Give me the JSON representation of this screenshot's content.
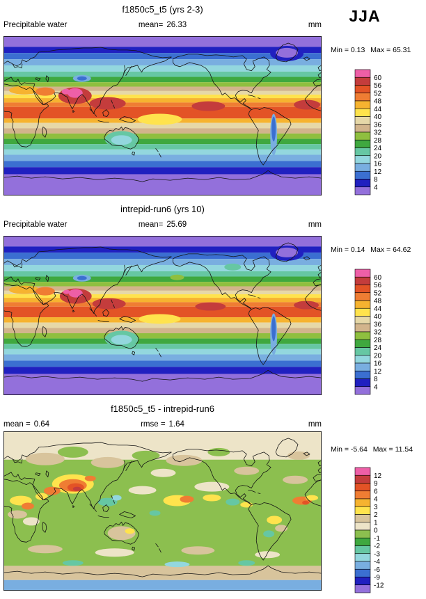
{
  "header": {
    "season": "JJA"
  },
  "chart_data": [
    {
      "type": "filled_contour_map",
      "title": "f1850c5_t5 (yrs 2-3)",
      "stats_left_label": "Precipitable water",
      "stats_left_value": "",
      "stats_center_label": "mean=",
      "stats_center_value": "26.33",
      "units": "mm",
      "min_label": "Min =",
      "min_value": "0.13",
      "max_label": "Max =",
      "max_value": "65.31",
      "colorbar_levels": [
        60,
        56,
        52,
        48,
        44,
        40,
        36,
        32,
        28,
        24,
        20,
        16,
        12,
        8,
        4
      ],
      "colorbar_colors": [
        "#EE5FA7",
        "#C43C3C",
        "#E35326",
        "#EF7D33",
        "#F6B330",
        "#FFE34D",
        "#E6D8A8",
        "#D2B48C",
        "#8FBF3F",
        "#3FA83F",
        "#66C7A3",
        "#93D7DE",
        "#79AEE0",
        "#3B6FD1",
        "#2020C0",
        "#9370DB"
      ],
      "zonal_bands": [
        [
          90,
          78,
          2
        ],
        [
          78,
          71,
          6
        ],
        [
          71,
          64,
          10
        ],
        [
          64,
          57,
          14
        ],
        [
          57,
          50,
          18
        ],
        [
          50,
          44,
          22
        ],
        [
          44,
          38,
          26
        ],
        [
          38,
          33,
          30
        ],
        [
          33,
          28,
          34
        ],
        [
          28,
          24,
          38
        ],
        [
          24,
          20,
          42
        ],
        [
          20,
          15,
          46
        ],
        [
          15,
          10,
          50
        ],
        [
          10,
          -3,
          54
        ],
        [
          -3,
          -8,
          46
        ],
        [
          -8,
          -14,
          38
        ],
        [
          -14,
          -20,
          34
        ],
        [
          -20,
          -26,
          30
        ],
        [
          -26,
          -32,
          26
        ],
        [
          -32,
          -38,
          22
        ],
        [
          -38,
          -44,
          18
        ],
        [
          -44,
          -51,
          14
        ],
        [
          -51,
          -58,
          10
        ],
        [
          -58,
          -66,
          6
        ],
        [
          -66,
          -90,
          2
        ]
      ],
      "features": [
        [
          103,
          86,
          24,
          12,
          58
        ],
        [
          150,
          97,
          26,
          9,
          58
        ],
        [
          295,
          101,
          24,
          7,
          58
        ],
        [
          437,
          99,
          19,
          7,
          58
        ],
        [
          30,
          78,
          22,
          6,
          46
        ],
        [
          60,
          80,
          14,
          6,
          50
        ],
        [
          103,
          82,
          11,
          7,
          62
        ],
        [
          90,
          80,
          6,
          4,
          62
        ],
        [
          113,
          61,
          13,
          5,
          14
        ],
        [
          113,
          61,
          7,
          3,
          10
        ],
        [
          408,
          25,
          24,
          11,
          6
        ],
        [
          408,
          24,
          16,
          7,
          2
        ],
        [
          389,
          142,
          5,
          30,
          14
        ],
        [
          389,
          134,
          3,
          18,
          10
        ],
        [
          170,
          149,
          24,
          12,
          22
        ],
        [
          170,
          150,
          15,
          7,
          18
        ],
        [
          225,
          120,
          32,
          8,
          42
        ]
      ]
    },
    {
      "type": "filled_contour_map",
      "title": "intrepid-run6 (yrs 10)",
      "stats_left_label": "Precipitable water",
      "stats_left_value": "",
      "stats_center_label": "mean=",
      "stats_center_value": "25.69",
      "units": "mm",
      "min_label": "Min =",
      "min_value": "0.14",
      "max_label": "Max =",
      "max_value": "64.62",
      "colorbar_levels": [
        60,
        56,
        52,
        48,
        44,
        40,
        36,
        32,
        28,
        24,
        20,
        16,
        12,
        8,
        4
      ],
      "colorbar_colors": [
        "#EE5FA7",
        "#C43C3C",
        "#E35326",
        "#EF7D33",
        "#F6B330",
        "#FFE34D",
        "#E6D8A8",
        "#D2B48C",
        "#8FBF3F",
        "#3FA83F",
        "#66C7A3",
        "#93D7DE",
        "#79AEE0",
        "#3B6FD1",
        "#2020C0",
        "#9370DB"
      ],
      "zonal_bands": [
        [
          90,
          78,
          2
        ],
        [
          78,
          71,
          6
        ],
        [
          71,
          64,
          10
        ],
        [
          64,
          57,
          14
        ],
        [
          57,
          50,
          18
        ],
        [
          50,
          44,
          22
        ],
        [
          44,
          38,
          26
        ],
        [
          38,
          33,
          30
        ],
        [
          33,
          28,
          34
        ],
        [
          28,
          24,
          38
        ],
        [
          24,
          20,
          42
        ],
        [
          20,
          15,
          46
        ],
        [
          15,
          10,
          50
        ],
        [
          10,
          -2,
          54
        ],
        [
          -2,
          -8,
          46
        ],
        [
          -8,
          -14,
          38
        ],
        [
          -14,
          -20,
          34
        ],
        [
          -20,
          -26,
          30
        ],
        [
          -26,
          -32,
          26
        ],
        [
          -32,
          -38,
          22
        ],
        [
          -38,
          -44,
          18
        ],
        [
          -44,
          -51,
          14
        ],
        [
          -51,
          -58,
          10
        ],
        [
          -58,
          -66,
          6
        ],
        [
          -66,
          -90,
          2
        ]
      ],
      "features": [
        [
          104,
          87,
          23,
          11,
          58
        ],
        [
          152,
          98,
          24,
          8,
          58
        ],
        [
          298,
          102,
          22,
          6,
          58
        ],
        [
          436,
          100,
          18,
          6,
          58
        ],
        [
          30,
          78,
          22,
          6,
          46
        ],
        [
          60,
          80,
          14,
          6,
          50
        ],
        [
          104,
          83,
          10,
          6,
          62
        ],
        [
          91,
          81,
          5,
          3,
          62
        ],
        [
          113,
          61,
          13,
          5,
          14
        ],
        [
          113,
          61,
          7,
          3,
          10
        ],
        [
          408,
          25,
          24,
          11,
          6
        ],
        [
          408,
          24,
          16,
          7,
          2
        ],
        [
          389,
          142,
          5,
          30,
          14
        ],
        [
          389,
          134,
          3,
          18,
          10
        ],
        [
          170,
          149,
          24,
          12,
          22
        ],
        [
          170,
          150,
          15,
          7,
          18
        ],
        [
          225,
          120,
          30,
          7,
          42
        ],
        [
          250,
          60,
          10,
          4,
          30
        ],
        [
          330,
          45,
          12,
          5,
          22
        ]
      ]
    },
    {
      "type": "filled_contour_map_difference",
      "title": "f1850c5_t5 - intrepid-run6",
      "stats_left_label": "mean =",
      "stats_left_value": "0.64",
      "stats_center_label": "rmse =",
      "stats_center_value": "1.64",
      "units": "mm",
      "min_label": "Min =",
      "min_value": "-5.64",
      "max_label": "Max =",
      "max_value": "11.54",
      "colorbar_levels": [
        12,
        9,
        6,
        4,
        3,
        2,
        1,
        0,
        -1,
        -2,
        -3,
        -4,
        -6,
        -9,
        -12
      ],
      "colorbar_colors": [
        "#EE5FA7",
        "#C43C3C",
        "#E35326",
        "#EF7D33",
        "#F6B330",
        "#FFE34D",
        "#D8C49C",
        "#EDE4C8",
        "#8CBF4F",
        "#3FA83F",
        "#66C7A3",
        "#93D7DE",
        "#79AEE0",
        "#3B6FD1",
        "#2020C0",
        "#9370DB"
      ],
      "zonal_bands": [
        [
          90,
          58,
          0.5
        ],
        [
          58,
          -62,
          -0.5
        ],
        [
          -62,
          -78,
          1.5
        ],
        [
          -78,
          -90,
          -5
        ]
      ],
      "features": [
        [
          100,
          30,
          22,
          8,
          -0.5
        ],
        [
          205,
          35,
          20,
          7,
          -0.5
        ],
        [
          310,
          30,
          16,
          6,
          -0.5
        ],
        [
          395,
          50,
          12,
          5,
          -0.5
        ],
        [
          55,
          55,
          15,
          6,
          -0.5
        ],
        [
          60,
          40,
          28,
          9,
          1.5
        ],
        [
          150,
          45,
          24,
          8,
          1.5
        ],
        [
          260,
          42,
          26,
          8,
          1.5
        ],
        [
          350,
          57,
          18,
          6,
          1.5
        ],
        [
          425,
          35,
          16,
          6,
          1.5
        ],
        [
          230,
          60,
          18,
          6,
          0.5
        ],
        [
          300,
          80,
          25,
          7,
          0.5
        ],
        [
          200,
          85,
          20,
          6,
          0.5
        ],
        [
          420,
          70,
          18,
          6,
          1.5
        ],
        [
          100,
          76,
          30,
          14,
          2.5
        ],
        [
          100,
          78,
          20,
          9,
          4.5
        ],
        [
          104,
          81,
          12,
          6,
          7
        ],
        [
          106,
          83,
          6,
          3,
          10
        ],
        [
          125,
          68,
          8,
          4,
          4.5
        ],
        [
          70,
          86,
          12,
          6,
          4.5
        ],
        [
          55,
          94,
          9,
          5,
          2.5
        ],
        [
          25,
          100,
          16,
          7,
          2.5
        ],
        [
          35,
          108,
          9,
          5,
          4.5
        ],
        [
          20,
          120,
          14,
          6,
          1.5
        ],
        [
          40,
          130,
          12,
          6,
          0.5
        ],
        [
          250,
          100,
          20,
          8,
          2.5
        ],
        [
          264,
          98,
          10,
          5,
          4.5
        ],
        [
          300,
          96,
          13,
          5,
          2.5
        ],
        [
          150,
          102,
          14,
          6,
          -2.5
        ],
        [
          163,
          96,
          7,
          4,
          -3.5
        ],
        [
          330,
          102,
          10,
          5,
          -2.5
        ],
        [
          350,
          106,
          9,
          4,
          2.5
        ],
        [
          218,
          118,
          8,
          4,
          -2.5
        ],
        [
          430,
          100,
          14,
          6,
          4.5
        ],
        [
          444,
          96,
          9,
          4,
          2.5
        ],
        [
          435,
          103,
          5,
          3,
          7
        ],
        [
          390,
          128,
          11,
          6,
          2.5
        ],
        [
          382,
          148,
          8,
          5,
          -2.5
        ],
        [
          400,
          140,
          9,
          5,
          1.5
        ],
        [
          170,
          147,
          20,
          10,
          1.5
        ],
        [
          182,
          144,
          7,
          4,
          2.5
        ],
        [
          60,
          170,
          25,
          6,
          1.5
        ],
        [
          160,
          175,
          28,
          6,
          0.5
        ],
        [
          280,
          172,
          24,
          6,
          1.5
        ],
        [
          380,
          178,
          18,
          5,
          0.5
        ],
        [
          100,
          190,
          15,
          4,
          -2.5
        ],
        [
          250,
          192,
          18,
          4,
          -3.5
        ],
        [
          350,
          190,
          12,
          4,
          -2.5
        ]
      ]
    }
  ]
}
